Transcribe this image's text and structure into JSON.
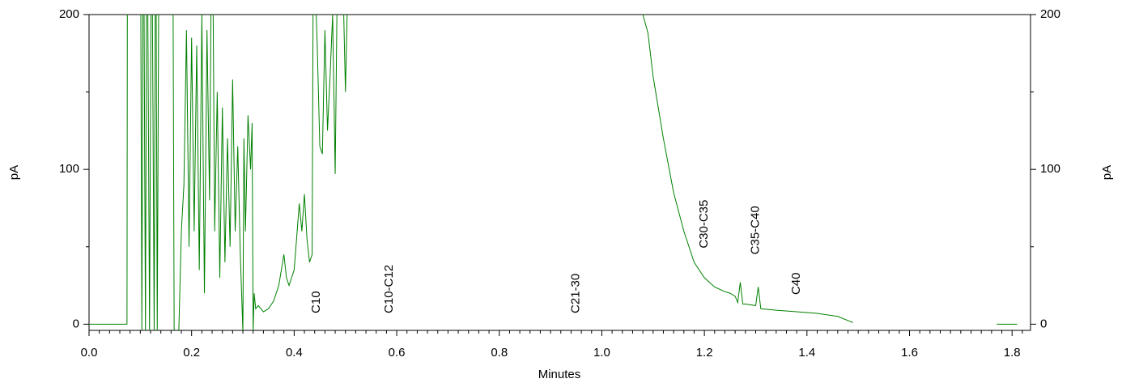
{
  "chart_data": {
    "type": "line",
    "x_label": "Minutes",
    "y_label": "pA",
    "y2_label": "pA",
    "color": "#008000",
    "xlim": [
      0,
      1.836
    ],
    "xticks": [
      {
        "value": 0,
        "label": "0.0"
      },
      0.2,
      0.4,
      0.6,
      0.8,
      {
        "value": 1,
        "label": "1.0"
      },
      1.2,
      1.4,
      1.6,
      1.8
    ],
    "ylim": [
      -4,
      200
    ],
    "yticks": [
      0,
      100,
      200
    ],
    "y2lim": [
      -4,
      200
    ],
    "y2ticks": [
      0,
      100,
      200
    ],
    "x": [
      0,
      0.02,
      0.04,
      0.06,
      0.074,
      0.075,
      0.1,
      0.103,
      0.106,
      0.11,
      0.113,
      0.118,
      0.122,
      0.127,
      0.13,
      0.133,
      0.137,
      0.163,
      0.166,
      0.175,
      0.18,
      0.185,
      0.19,
      0.195,
      0.2,
      0.205,
      0.21,
      0.215,
      0.22,
      0.225,
      0.23,
      0.235,
      0.24,
      0.245,
      0.25,
      0.255,
      0.26,
      0.265,
      0.27,
      0.275,
      0.28,
      0.285,
      0.29,
      0.295,
      0.3,
      0.302,
      0.305,
      0.31,
      0.315,
      0.318,
      0.32,
      0.322,
      0.325,
      0.33,
      0.34,
      0.35,
      0.36,
      0.37,
      0.38,
      0.385,
      0.39,
      0.4,
      0.41,
      0.415,
      0.42,
      0.425,
      0.43,
      0.435,
      0.438,
      0.44,
      0.445,
      0.45,
      0.455,
      0.46,
      0.465,
      0.47,
      0.475,
      0.48,
      0.485,
      0.49,
      0.5,
      0.51,
      0.52,
      1.08,
      1.09,
      1.1,
      1.12,
      1.14,
      1.16,
      1.18,
      1.2,
      1.22,
      1.24,
      1.25,
      1.26,
      1.265,
      1.27,
      1.275,
      1.28,
      1.3,
      1.305,
      1.31,
      1.34,
      1.38,
      1.42,
      1.46,
      1.49,
      1.6,
      1.77,
      1.81
    ],
    "values": [
      0,
      0,
      0,
      0,
      0,
      300,
      300,
      -5,
      300,
      -5,
      300,
      -5,
      300,
      -5,
      300,
      -5,
      300,
      300,
      -5,
      -5,
      60,
      90,
      190,
      50,
      185,
      60,
      180,
      35,
      200,
      20,
      190,
      80,
      300,
      60,
      150,
      30,
      140,
      40,
      120,
      50,
      158,
      60,
      115,
      45,
      -5,
      120,
      60,
      135,
      100,
      130,
      -5,
      20,
      10,
      12,
      8,
      10,
      15,
      25,
      45,
      30,
      25,
      35,
      78,
      60,
      84,
      55,
      40,
      45,
      300,
      230,
      180,
      115,
      110,
      190,
      125,
      160,
      200,
      97,
      250,
      300,
      150,
      300,
      300,
      200,
      188,
      160,
      120,
      85,
      60,
      40,
      30,
      24,
      21,
      20,
      18,
      14,
      27,
      13,
      13,
      12,
      24,
      10,
      9,
      8,
      7,
      5,
      1,
      null,
      0,
      0
    ],
    "annotations": [
      {
        "text": "C10",
        "x": 0.444,
        "y": 7
      },
      {
        "text": "C10-C12",
        "x": 0.586,
        "y": 7
      },
      {
        "text": "C21-30",
        "x": 0.95,
        "y": 7
      },
      {
        "text": "C30-C35",
        "x": 1.2,
        "y": 49
      },
      {
        "text": "C35-C40",
        "x": 1.3,
        "y": 45
      },
      {
        "text": "C40",
        "x": 1.38,
        "y": 19
      }
    ]
  }
}
